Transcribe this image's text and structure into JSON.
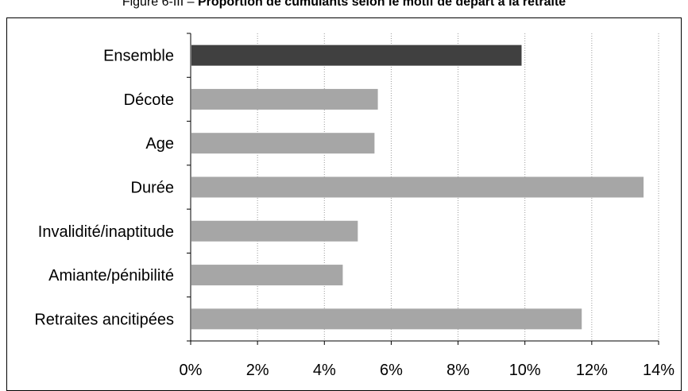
{
  "figure": {
    "prefix": "Figure 6-III – ",
    "title": "Proportion de cumulants selon le motif de départ à la retraite"
  },
  "chart_data": {
    "type": "bar",
    "orientation": "horizontal",
    "categories": [
      "Ensemble",
      "Décote",
      "Age",
      "Durée",
      "Invalidité/inaptitude",
      "Amiante/pénibilité",
      "Retraites ancitipées"
    ],
    "values": [
      9.9,
      5.6,
      5.5,
      13.55,
      5.0,
      4.55,
      11.7
    ],
    "xlim": [
      0,
      14
    ],
    "xticks": [
      "0%",
      "2%",
      "4%",
      "6%",
      "8%",
      "10%",
      "12%",
      "14%"
    ],
    "grid": "vertical dotted",
    "colors": {
      "highlight": "#404040",
      "default": "#a6a6a6"
    },
    "highlight_category": "Ensemble"
  }
}
